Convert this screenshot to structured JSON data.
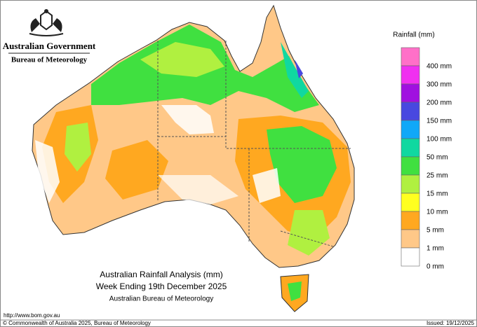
{
  "header": {
    "government": "Australian Government",
    "agency": "Bureau of Meteorology"
  },
  "legend": {
    "title": "Rainfall (mm)",
    "items": [
      {
        "label": "400 mm",
        "color": "#ff70c8"
      },
      {
        "label": "300 mm",
        "color": "#f030f0"
      },
      {
        "label": "200 mm",
        "color": "#a010e0"
      },
      {
        "label": "150 mm",
        "color": "#4848e0"
      },
      {
        "label": "100 mm",
        "color": "#10a8f8"
      },
      {
        "label": "50 mm",
        "color": "#10d8a0"
      },
      {
        "label": "25 mm",
        "color": "#40e040"
      },
      {
        "label": "15 mm",
        "color": "#b0f040"
      },
      {
        "label": "10 mm",
        "color": "#ffff20"
      },
      {
        "label": "5 mm",
        "color": "#ffa820"
      },
      {
        "label": "1 mm",
        "color": "#ffc888"
      },
      {
        "label": "0 mm",
        "color": "#ffffff"
      }
    ]
  },
  "title": {
    "line1": "Australian Rainfall Analysis (mm)",
    "line2": "Week Ending 19th December 2025",
    "line3": "Australian Bureau of Meteorology"
  },
  "footer": {
    "url": "http://www.bom.gov.au",
    "copyright": "© Commonwealth of Australia 2025, Bureau of Meteorology",
    "issued": "Issued: 19/12/2025"
  }
}
